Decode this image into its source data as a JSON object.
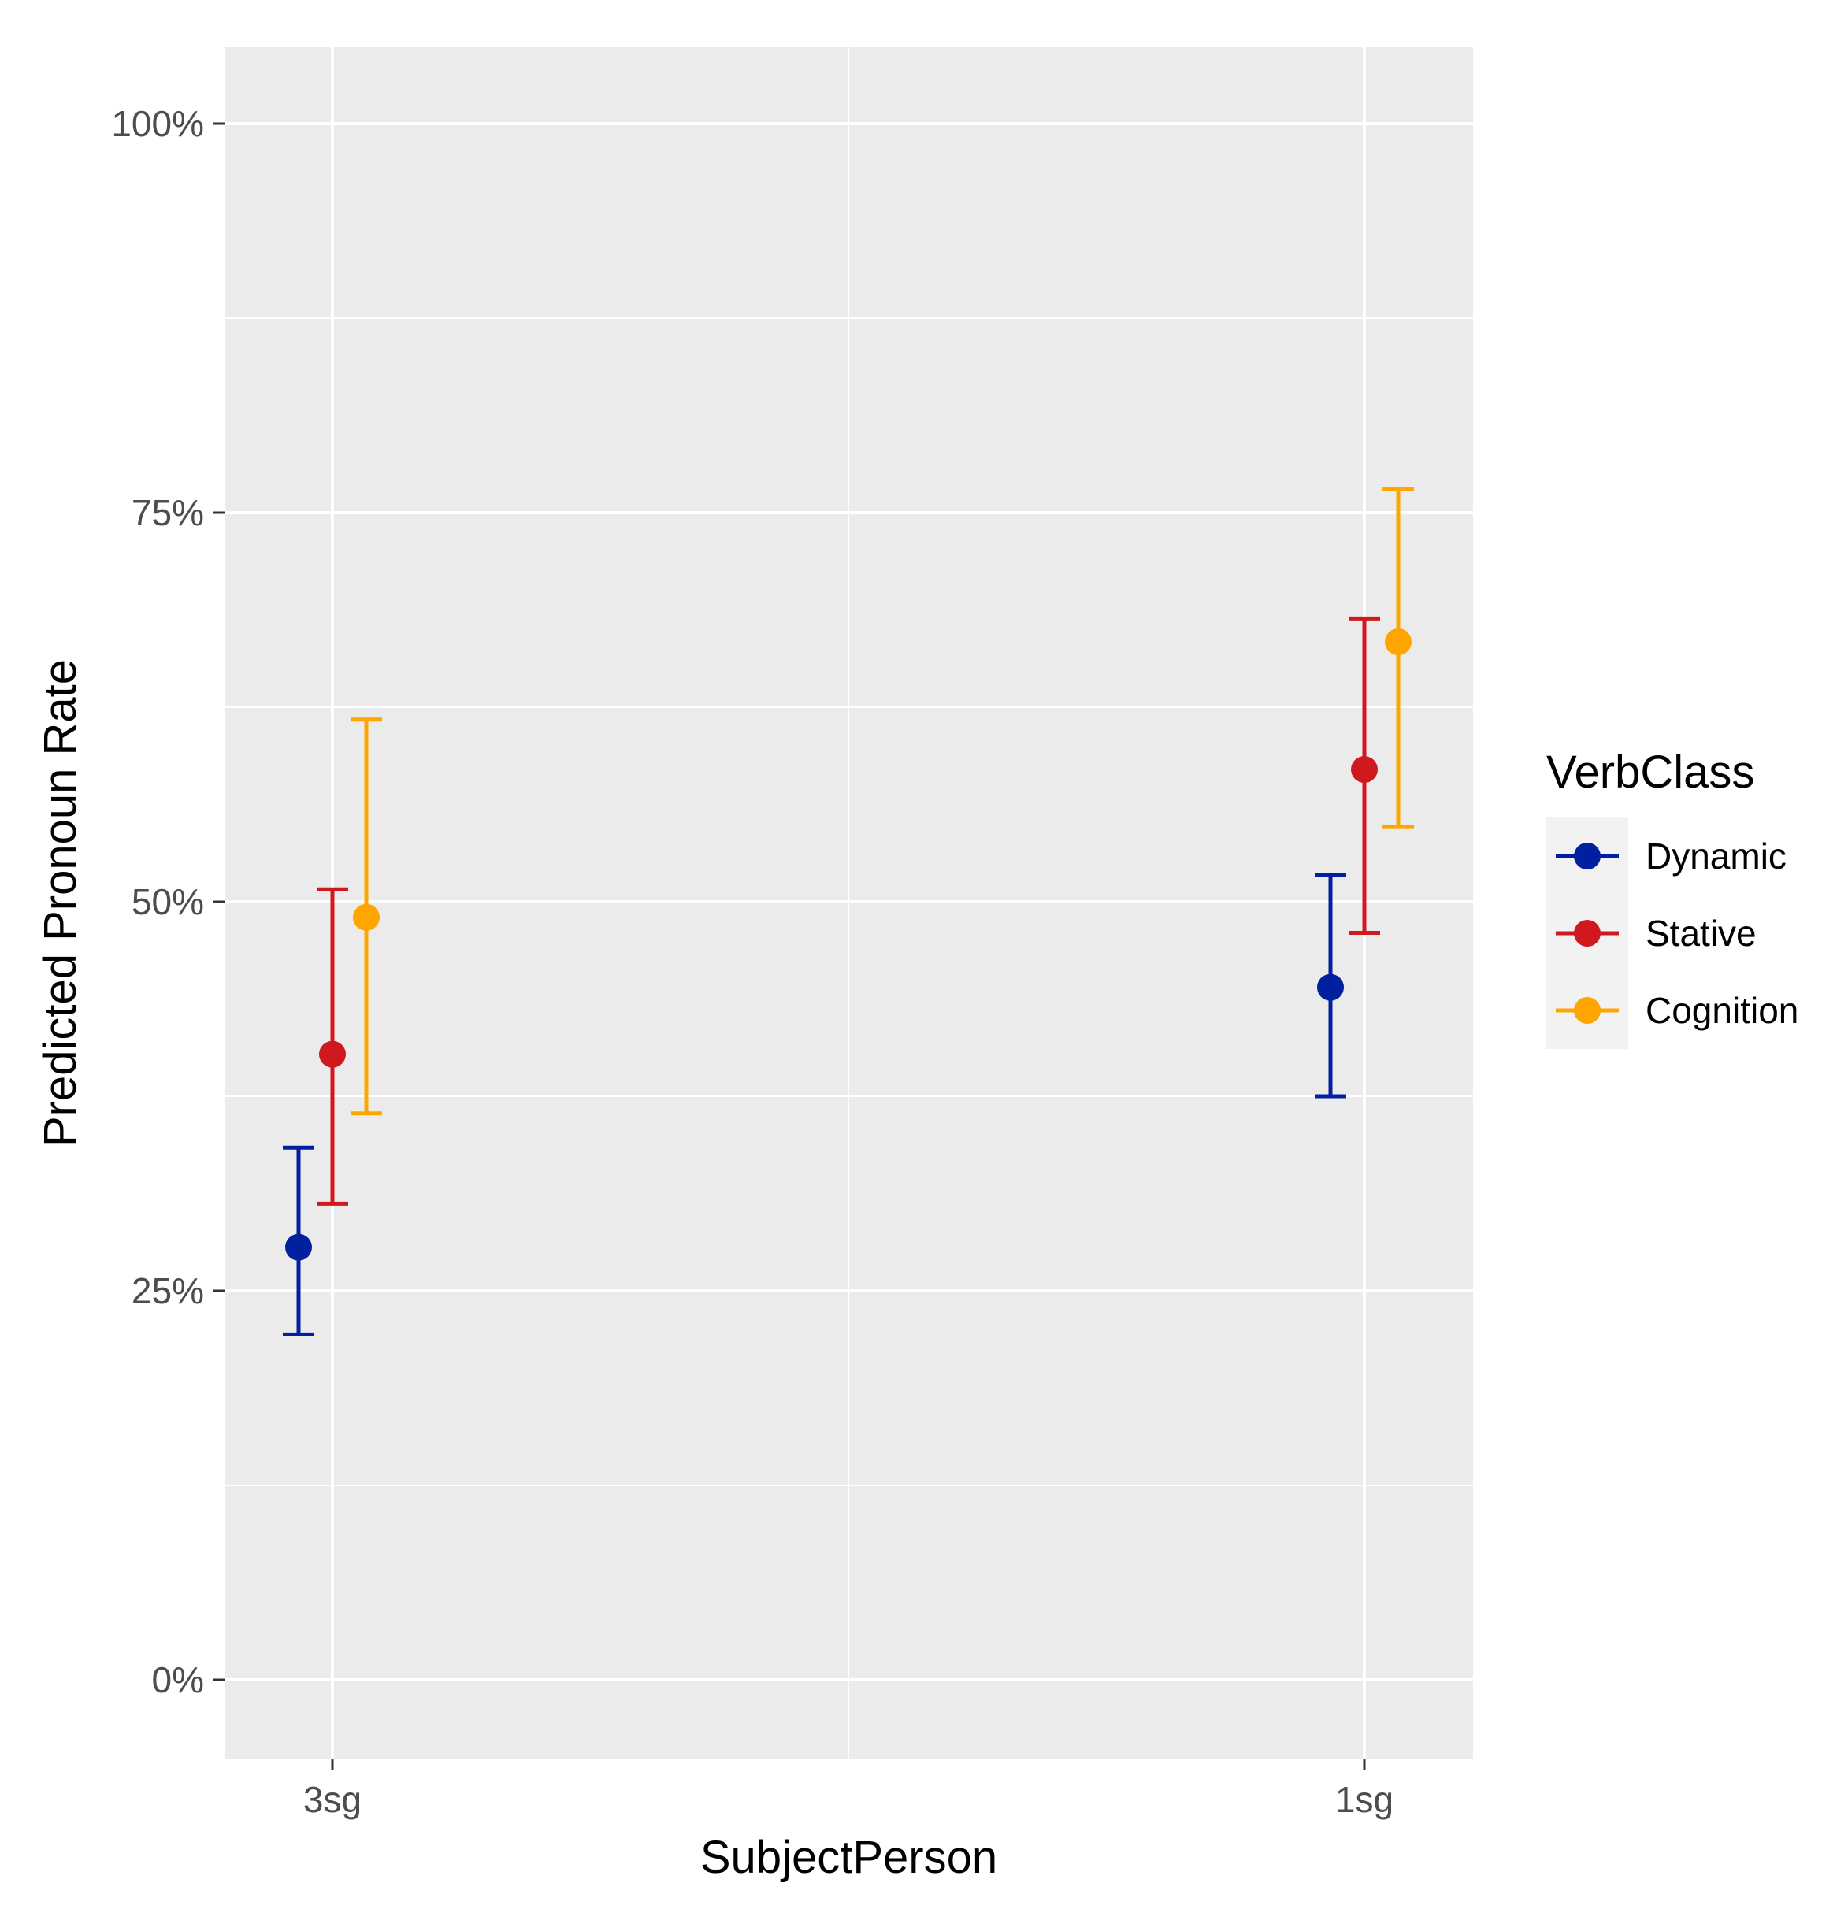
{
  "chart_data": {
    "type": "scatter",
    "subtype": "point-range (predicted values with confidence intervals)",
    "title": "",
    "xlabel": "SubjectPerson",
    "ylabel": "Predicted Pronoun Rate",
    "categories": [
      "3sg",
      "1sg"
    ],
    "ylim": [
      -0.05,
      1.05
    ],
    "y_ticks": [
      0,
      0.25,
      0.5,
      0.75,
      1.0
    ],
    "y_tick_labels": [
      "0%",
      "25%",
      "50%",
      "75%",
      "100%"
    ],
    "grid": true,
    "legend": {
      "title": "VerbClass",
      "position": "right"
    },
    "series": [
      {
        "name": "Dynamic",
        "color": "#00209F",
        "values": [
          0.278,
          0.445
        ],
        "lower": [
          0.222,
          0.375
        ],
        "upper": [
          0.342,
          0.517
        ]
      },
      {
        "name": "Stative",
        "color": "#D0191F",
        "values": [
          0.402,
          0.585
        ],
        "lower": [
          0.306,
          0.48
        ],
        "upper": [
          0.508,
          0.682
        ]
      },
      {
        "name": "Cognition",
        "color": "#FFA500",
        "values": [
          0.49,
          0.667
        ],
        "lower": [
          0.364,
          0.548
        ],
        "upper": [
          0.617,
          0.765
        ]
      }
    ]
  }
}
